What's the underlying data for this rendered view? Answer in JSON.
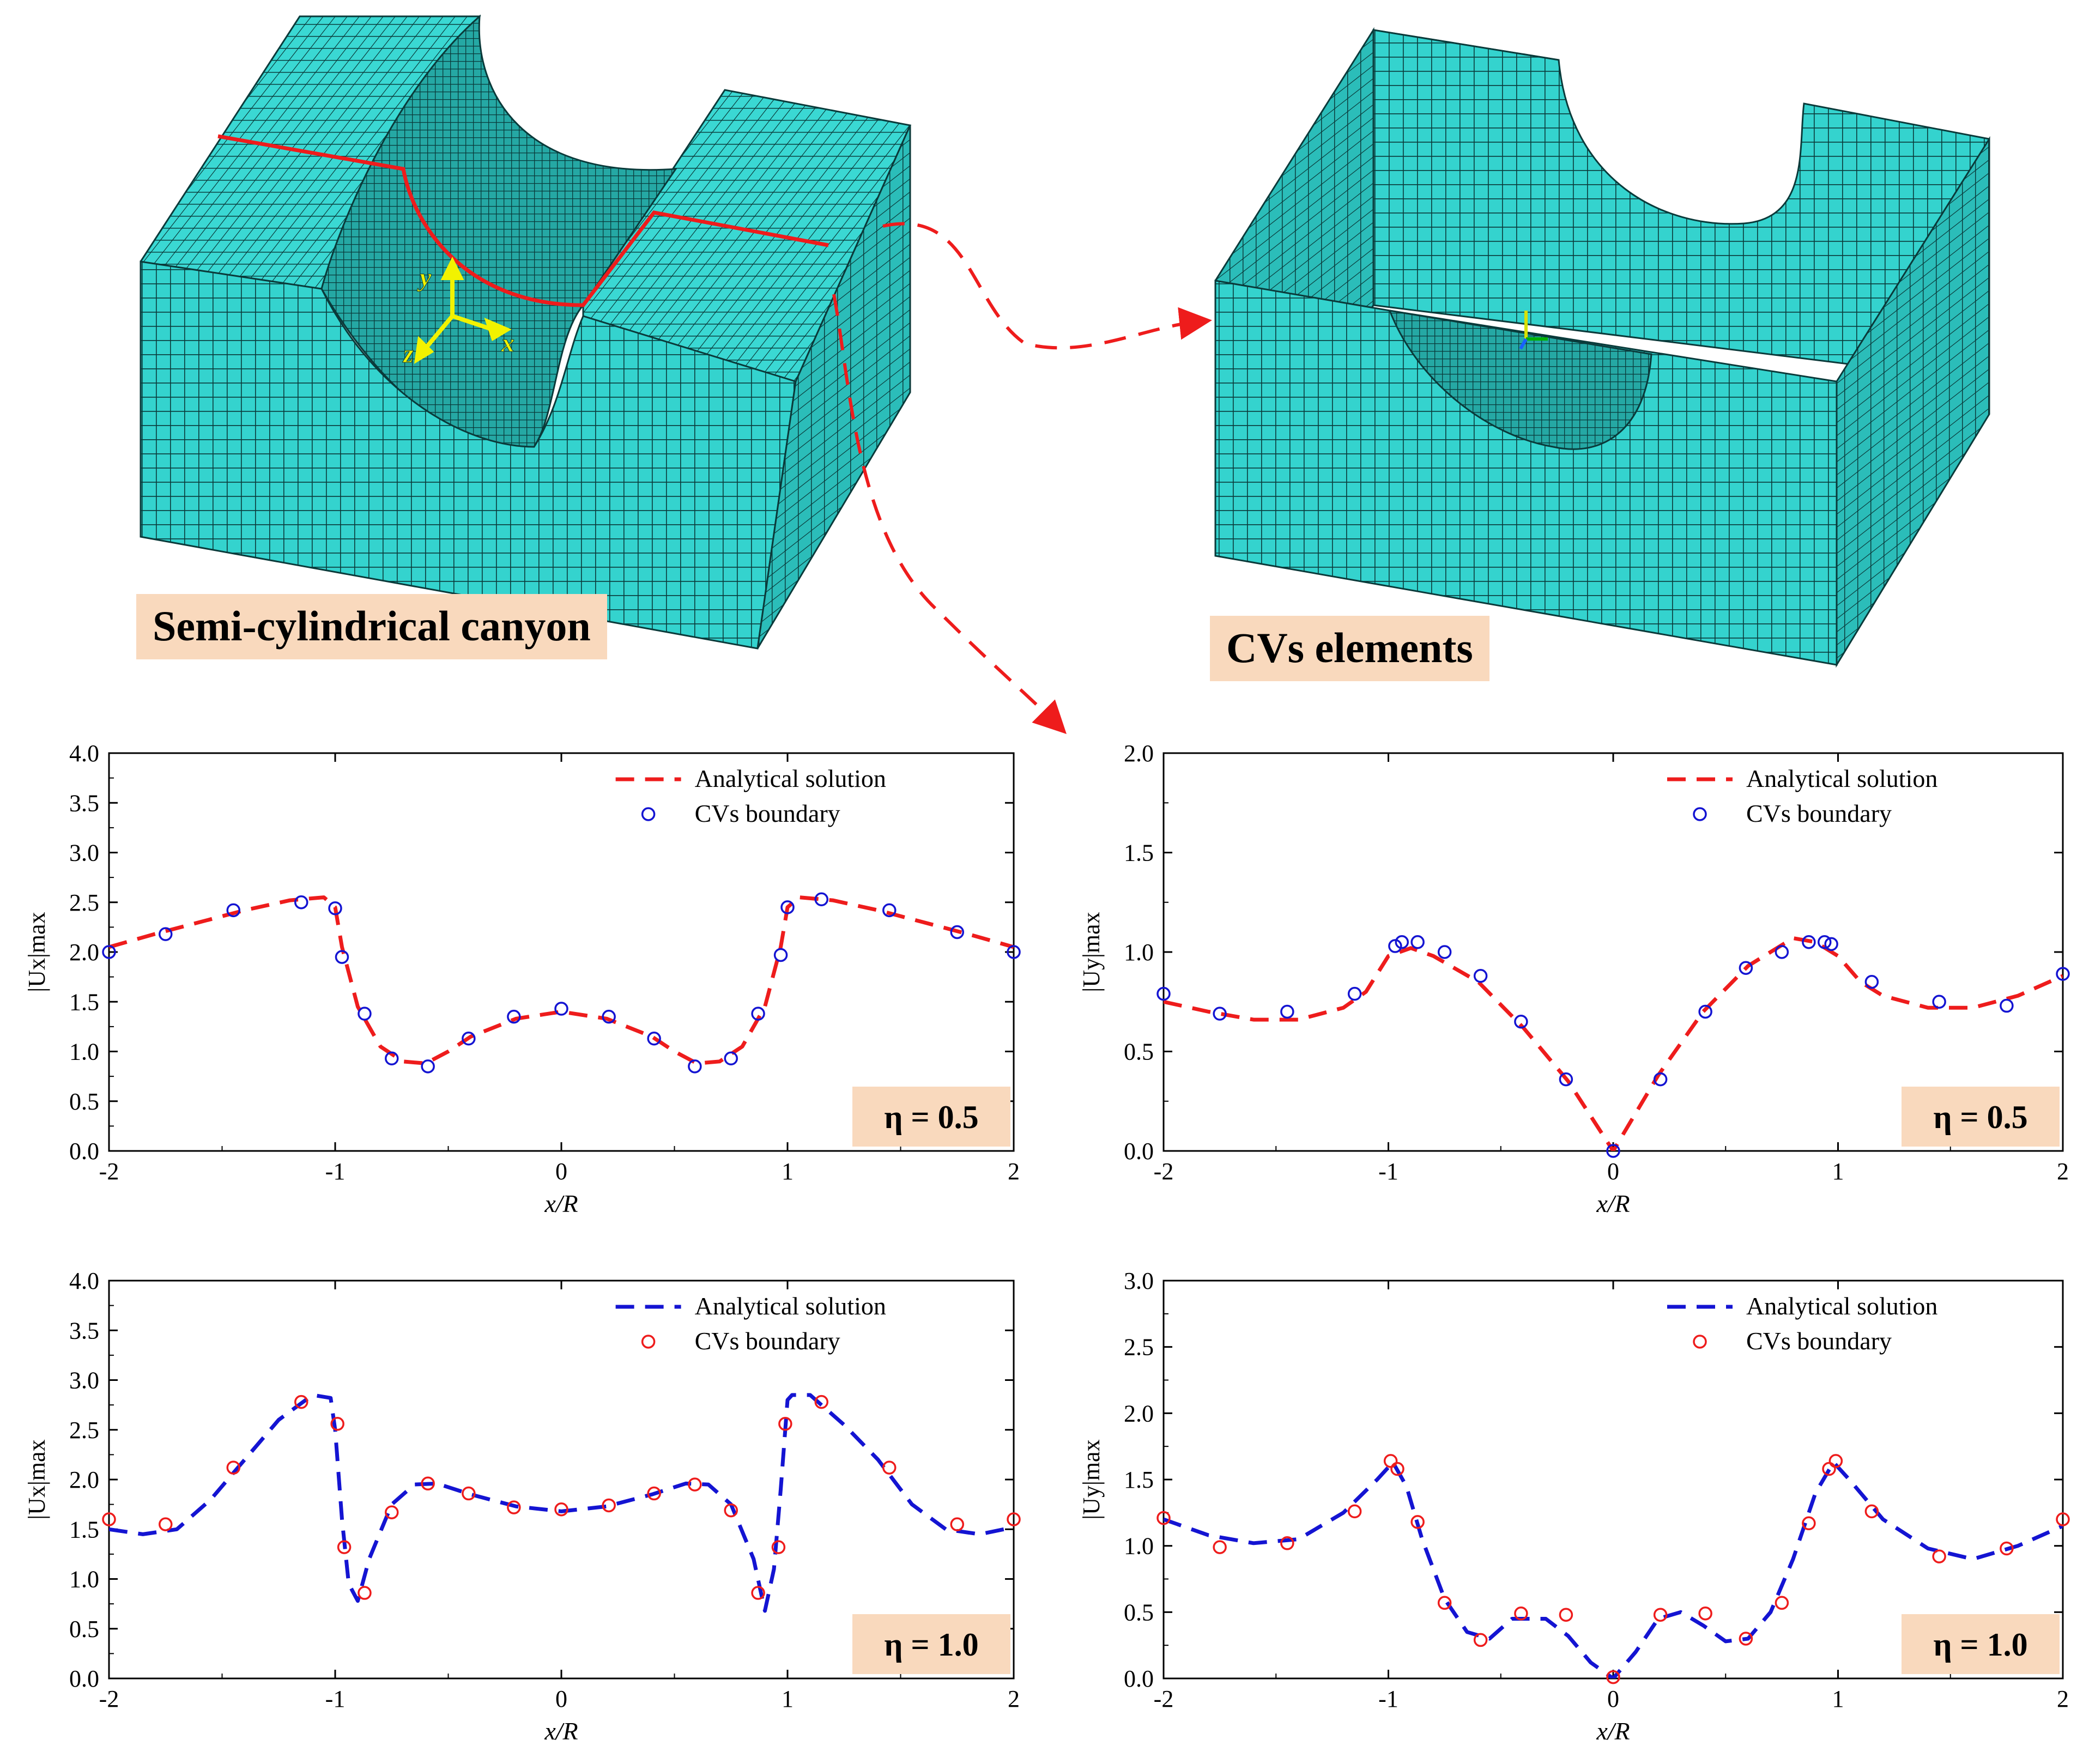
{
  "colors": {
    "mesh": "#34d3ce",
    "mesh_side": "#2ec4c0",
    "mesh_dark": "#1b8f8c",
    "red": "#ee1c1c",
    "blue": "#1414d2",
    "label_bg": "#f9d9bd",
    "axes_yellow": "#f2f200"
  },
  "top": {
    "left_label": "Semi-cylindrical canyon",
    "right_label": "CVs elements",
    "axis_labels": {
      "x": "x",
      "y": "y",
      "z": "z"
    }
  },
  "chart_data": [
    {
      "id": "ux_eta05",
      "type": "line",
      "xlabel": "x/R",
      "ylabel": "|Ux|max",
      "xlim": [
        -2,
        2
      ],
      "ylim": [
        0,
        4
      ],
      "xticks": [
        "-2",
        "-1",
        "0",
        "1",
        "2"
      ],
      "yticks": [
        "0.0",
        "0.5",
        "1.0",
        "1.5",
        "2.0",
        "2.5",
        "3.0",
        "3.5",
        "4.0"
      ],
      "eta_label": "η = 0.5",
      "series": [
        {
          "name": "Analytical solution",
          "style": "dashed",
          "color": "#ee1c1c",
          "x": [
            -2,
            -1.8,
            -1.6,
            -1.4,
            -1.2,
            -1.05,
            -1.0,
            -0.97,
            -0.9,
            -0.8,
            -0.7,
            -0.6,
            -0.5,
            -0.4,
            -0.2,
            0,
            0.2,
            0.4,
            0.5,
            0.6,
            0.7,
            0.8,
            0.9,
            0.97,
            1.0,
            1.05,
            1.2,
            1.4,
            1.6,
            1.8,
            2
          ],
          "y": [
            2.05,
            2.18,
            2.3,
            2.42,
            2.52,
            2.55,
            2.45,
            2.05,
            1.45,
            1.05,
            0.9,
            0.88,
            1.0,
            1.15,
            1.33,
            1.4,
            1.33,
            1.15,
            1.0,
            0.88,
            0.9,
            1.05,
            1.45,
            2.05,
            2.45,
            2.55,
            2.52,
            2.42,
            2.3,
            2.18,
            2.05
          ]
        },
        {
          "name": "CVs boundary",
          "style": "markers",
          "color": "#1414d2",
          "x": [
            -2,
            -1.75,
            -1.45,
            -1.15,
            -1.0,
            -0.97,
            -0.87,
            -0.75,
            -0.59,
            -0.41,
            -0.21,
            0,
            0.21,
            0.41,
            0.59,
            0.75,
            0.87,
            0.97,
            1.0,
            1.15,
            1.45,
            1.75,
            2
          ],
          "y": [
            2.0,
            2.18,
            2.42,
            2.5,
            2.44,
            1.95,
            1.38,
            0.93,
            0.85,
            1.13,
            1.35,
            1.43,
            1.35,
            1.13,
            0.85,
            0.93,
            1.38,
            1.97,
            2.45,
            2.53,
            2.42,
            2.2,
            2.0
          ]
        }
      ]
    },
    {
      "id": "uy_eta05",
      "type": "line",
      "xlabel": "x/R",
      "ylabel": "|Uy|max",
      "xlim": [
        -2,
        2
      ],
      "ylim": [
        0,
        2
      ],
      "xticks": [
        "-2",
        "-1",
        "0",
        "1",
        "2"
      ],
      "yticks": [
        "0.0",
        "0.5",
        "1.0",
        "1.5",
        "2.0"
      ],
      "eta_label": "η = 0.5",
      "series": [
        {
          "name": "Analytical solution",
          "style": "dashed",
          "color": "#ee1c1c",
          "x": [
            -2,
            -1.8,
            -1.6,
            -1.4,
            -1.2,
            -1.1,
            -1.0,
            -0.9,
            -0.8,
            -0.6,
            -0.4,
            -0.2,
            0,
            0.2,
            0.4,
            0.6,
            0.8,
            0.9,
            1.0,
            1.1,
            1.2,
            1.4,
            1.6,
            1.8,
            2
          ],
          "y": [
            0.75,
            0.7,
            0.66,
            0.66,
            0.72,
            0.8,
            0.98,
            1.02,
            0.98,
            0.85,
            0.62,
            0.35,
            0.0,
            0.38,
            0.7,
            0.93,
            1.07,
            1.05,
            0.98,
            0.85,
            0.78,
            0.72,
            0.72,
            0.78,
            0.88
          ]
        },
        {
          "name": "CVs boundary",
          "style": "markers",
          "color": "#1414d2",
          "x": [
            -2,
            -1.75,
            -1.45,
            -1.15,
            -0.97,
            -0.94,
            -0.87,
            -0.75,
            -0.59,
            -0.41,
            -0.21,
            0,
            0.21,
            0.41,
            0.59,
            0.75,
            0.87,
            0.94,
            0.97,
            1.15,
            1.45,
            1.75,
            2
          ],
          "y": [
            0.79,
            0.69,
            0.7,
            0.79,
            1.03,
            1.05,
            1.05,
            1.0,
            0.88,
            0.65,
            0.36,
            0.0,
            0.36,
            0.7,
            0.92,
            1.0,
            1.05,
            1.05,
            1.04,
            0.85,
            0.75,
            0.73,
            0.89
          ]
        }
      ]
    },
    {
      "id": "ux_eta10",
      "type": "line",
      "xlabel": "x/R",
      "ylabel": "|Ux|max",
      "xlim": [
        -2,
        2
      ],
      "ylim": [
        0,
        4
      ],
      "xticks": [
        "-2",
        "-1",
        "0",
        "1",
        "2"
      ],
      "yticks": [
        "0.0",
        "0.5",
        "1.0",
        "1.5",
        "2.0",
        "2.5",
        "3.0",
        "3.5",
        "4.0"
      ],
      "eta_label": "η = 1.0",
      "series": [
        {
          "name": "Analytical solution",
          "style": "dashed",
          "color": "#1414d2",
          "x": [
            -2,
            -1.85,
            -1.7,
            -1.55,
            -1.4,
            -1.25,
            -1.1,
            -1.02,
            -1.0,
            -0.97,
            -0.94,
            -0.9,
            -0.85,
            -0.75,
            -0.65,
            -0.55,
            -0.4,
            -0.2,
            0,
            0.2,
            0.4,
            0.55,
            0.65,
            0.75,
            0.85,
            0.9,
            0.94,
            0.97,
            1.0,
            1.02,
            1.1,
            1.25,
            1.4,
            1.55,
            1.7,
            1.85,
            2
          ],
          "y": [
            1.5,
            1.45,
            1.5,
            1.8,
            2.2,
            2.6,
            2.85,
            2.82,
            2.5,
            1.6,
            0.95,
            0.78,
            1.2,
            1.75,
            1.95,
            1.96,
            1.85,
            1.73,
            1.68,
            1.73,
            1.85,
            1.96,
            1.95,
            1.75,
            1.2,
            0.68,
            1.1,
            1.9,
            2.8,
            2.85,
            2.85,
            2.55,
            2.2,
            1.75,
            1.5,
            1.45,
            1.52
          ]
        },
        {
          "name": "CVs boundary",
          "style": "markers",
          "color": "#ee1c1c",
          "x": [
            -2,
            -1.75,
            -1.45,
            -1.15,
            -0.99,
            -0.96,
            -0.87,
            -0.75,
            -0.59,
            -0.41,
            -0.21,
            0,
            0.21,
            0.41,
            0.59,
            0.75,
            0.87,
            0.96,
            0.99,
            1.15,
            1.45,
            1.75,
            2
          ],
          "y": [
            1.6,
            1.55,
            2.12,
            2.78,
            2.56,
            1.32,
            0.86,
            1.67,
            1.96,
            1.86,
            1.72,
            1.7,
            1.74,
            1.86,
            1.95,
            1.69,
            0.86,
            1.32,
            2.56,
            2.78,
            2.12,
            1.55,
            1.6
          ]
        }
      ]
    },
    {
      "id": "uy_eta10",
      "type": "line",
      "xlabel": "x/R",
      "ylabel": "|Uy|max",
      "xlim": [
        -2,
        2
      ],
      "ylim": [
        0,
        3
      ],
      "xticks": [
        "-2",
        "-1",
        "0",
        "1",
        "2"
      ],
      "yticks": [
        "0.0",
        "0.5",
        "1.0",
        "1.5",
        "2.0",
        "2.5",
        "3.0"
      ],
      "eta_label": "η = 1.0",
      "series": [
        {
          "name": "Analytical solution",
          "style": "dashed",
          "color": "#1414d2",
          "x": [
            -2,
            -1.8,
            -1.6,
            -1.4,
            -1.2,
            -1.05,
            -0.98,
            -0.92,
            -0.85,
            -0.75,
            -0.65,
            -0.55,
            -0.45,
            -0.3,
            -0.2,
            -0.1,
            0,
            0.1,
            0.2,
            0.3,
            0.4,
            0.5,
            0.6,
            0.7,
            0.8,
            0.9,
            0.98,
            1.05,
            1.2,
            1.4,
            1.6,
            1.8,
            2
          ],
          "y": [
            1.2,
            1.08,
            1.02,
            1.05,
            1.25,
            1.5,
            1.63,
            1.45,
            1.05,
            0.6,
            0.35,
            0.3,
            0.45,
            0.45,
            0.32,
            0.12,
            0.0,
            0.2,
            0.45,
            0.5,
            0.4,
            0.28,
            0.3,
            0.5,
            0.9,
            1.4,
            1.63,
            1.5,
            1.2,
            0.98,
            0.9,
            1.0,
            1.15
          ]
        },
        {
          "name": "CVs boundary",
          "style": "markers",
          "color": "#ee1c1c",
          "x": [
            -2,
            -1.75,
            -1.45,
            -1.15,
            -0.99,
            -0.96,
            -0.87,
            -0.75,
            -0.59,
            -0.41,
            -0.21,
            0,
            0.21,
            0.41,
            0.59,
            0.75,
            0.87,
            0.96,
            0.99,
            1.15,
            1.45,
            1.75,
            2
          ],
          "y": [
            1.21,
            0.99,
            1.02,
            1.26,
            1.64,
            1.58,
            1.18,
            0.57,
            0.29,
            0.49,
            0.48,
            0.01,
            0.48,
            0.49,
            0.3,
            0.57,
            1.17,
            1.58,
            1.64,
            1.26,
            0.92,
            0.98,
            1.2
          ]
        }
      ]
    }
  ]
}
